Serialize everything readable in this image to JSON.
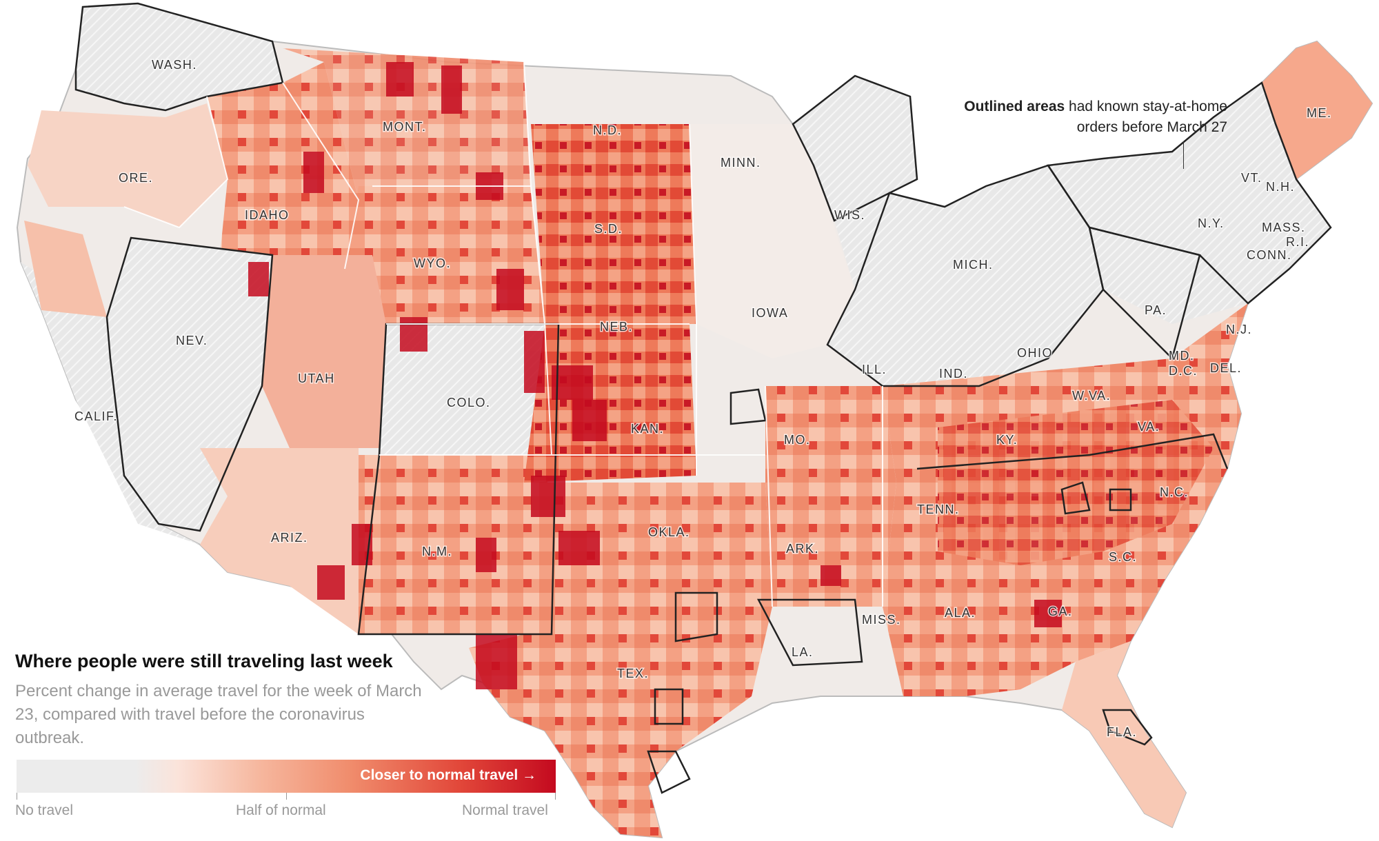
{
  "title": "Where people were still traveling last week",
  "subtitle": "Percent change in average travel for the week of March 23, compared with travel before the coronavirus outbreak.",
  "legend": {
    "arrow_text": "Closer to normal travel →",
    "ticks": [
      "No travel",
      "Half of normal",
      "Normal travel"
    ],
    "colors": [
      "#ececec",
      "#f6b79e",
      "#e2483a",
      "#c40a1f"
    ]
  },
  "annotation": {
    "bold": "Outlined areas",
    "rest": "had known stay-at-home orders before March 27"
  },
  "state_labels": [
    "WASH.",
    "ORE.",
    "IDAHO",
    "MONT.",
    "WYO.",
    "N.D.",
    "S.D.",
    "NEB.",
    "KAN.",
    "OKLA.",
    "TEX.",
    "N.M.",
    "COLO.",
    "UTAH",
    "NEV.",
    "CALIF.",
    "ARIZ.",
    "MINN.",
    "IOWA",
    "MO.",
    "ARK.",
    "LA.",
    "WIS.",
    "ILL.",
    "MICH.",
    "IND.",
    "OHIO",
    "KY.",
    "TENN.",
    "MISS.",
    "ALA.",
    "GA.",
    "FLA.",
    "S.C.",
    "N.C.",
    "VA.",
    "W.VA.",
    "PA.",
    "N.Y.",
    "VT.",
    "N.H.",
    "ME.",
    "MASS.",
    "R.I.",
    "CONN.",
    "N.J.",
    "MD.",
    "D.C.",
    "DEL."
  ],
  "colors": {
    "no_travel": "#ececec",
    "half": "#f6b79e",
    "normal": "#c40a1f",
    "outline": "#222222"
  }
}
